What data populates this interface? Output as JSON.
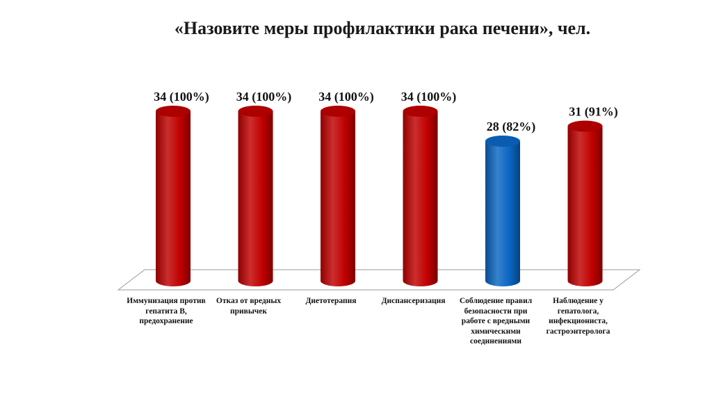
{
  "chart_data": {
    "type": "bar",
    "title": "«Назовите меры профилактики рака печени», чел.",
    "categories": [
      "Иммунизация против гепатита В, предохранение",
      "Отказ от вредных привычек",
      "Диетотерапия",
      "Диспансеризация",
      "Соблюдение правил безопасности при работе с вредными химическими соединениями",
      "Наблюдение у гепатолога, инфекциониста, гастроэнтеролога"
    ],
    "values": [
      34,
      34,
      34,
      34,
      28,
      31
    ],
    "percents": [
      100,
      100,
      100,
      100,
      82,
      91
    ],
    "data_labels": [
      "34 (100%)",
      "34 (100%)",
      "34 (100%)",
      "34 (100%)",
      "28 (82%)",
      "31 (91%)"
    ],
    "bar_colors": [
      "#c00000",
      "#c00000",
      "#c00000",
      "#c00000",
      "#0a66c2",
      "#c00000"
    ],
    "ylim": [
      0,
      34
    ],
    "grid": false,
    "style": "3d-cylinder"
  }
}
